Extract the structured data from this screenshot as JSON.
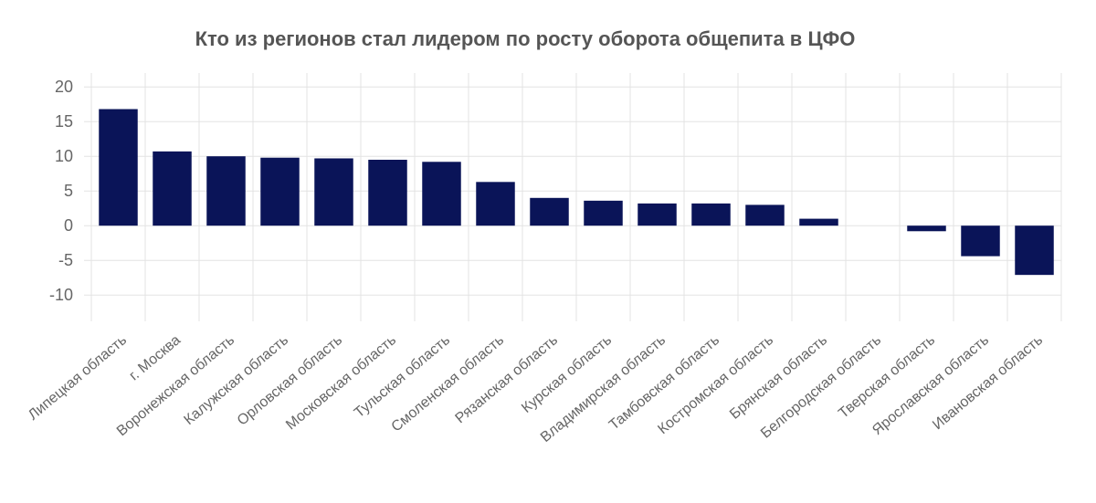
{
  "chart_data": {
    "type": "bar",
    "title": "Кто из регионов стал лидером по росту оборота общепита в ЦФО",
    "xlabel": "",
    "ylabel": "",
    "ylim": [
      -13,
      22
    ],
    "yticks": [
      20,
      15,
      10,
      5,
      0,
      -5,
      -10
    ],
    "grid": true,
    "legend": "none",
    "bar_color": "#0a1458",
    "categories": [
      "Липецкая область",
      "г. Москва",
      "Воронежская область",
      "Калужская область",
      "Орловская область",
      "Московская область",
      "Тульская область",
      "Смоленская область",
      "Рязанская область",
      "Курская область",
      "Владимирская область",
      "Тамбовская область",
      "Костромская область",
      "Брянская область",
      "Белгородская область",
      "Тверская область",
      "Ярославская область",
      "Ивановская область"
    ],
    "values": [
      16.8,
      10.7,
      10.0,
      9.8,
      9.7,
      9.5,
      9.2,
      6.3,
      4.0,
      3.6,
      3.2,
      3.2,
      3.0,
      1.0,
      0.0,
      -0.8,
      -4.4,
      -7.1
    ]
  }
}
